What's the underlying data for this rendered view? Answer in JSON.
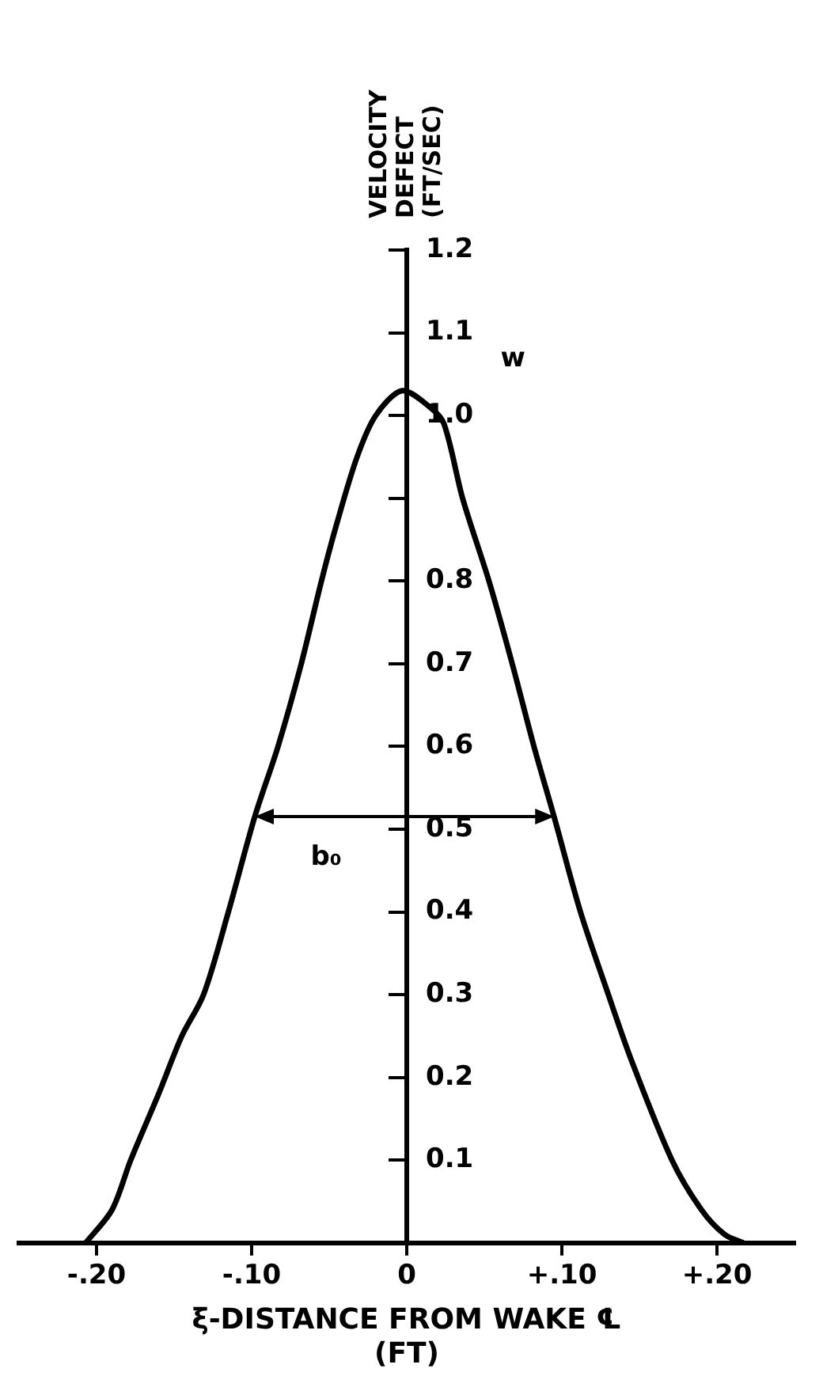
{
  "chart_data": {
    "type": "line",
    "xlabel": "ξ-DISTANCE FROM WAKE ℄ (FT)",
    "ylabel": "VELOCITY DEFECT (FT/SEC)",
    "series": [
      {
        "color": "#000000",
        "x": [
          -0.207,
          -0.19,
          -0.178,
          -0.16,
          -0.145,
          -0.131,
          -0.115,
          -0.098,
          -0.083,
          -0.068,
          -0.055,
          -0.045,
          -0.032,
          -0.02,
          -0.003,
          0.015,
          0.024,
          0.036,
          0.053,
          0.068,
          0.082,
          0.095,
          0.112,
          0.13,
          0.145,
          0.171,
          0.19,
          0.205,
          0.217
        ],
        "values": [
          0,
          0.04,
          0.1,
          0.18,
          0.25,
          0.3,
          0.4,
          0.515,
          0.6,
          0.7,
          0.8,
          0.87,
          0.95,
          1.0,
          1.03,
          1.01,
          0.99,
          0.9,
          0.8,
          0.7,
          0.6,
          0.515,
          0.4,
          0.3,
          0.22,
          0.1,
          0.04,
          0.01,
          0
        ]
      }
    ],
    "xlim": [
      -0.25,
      0.25
    ],
    "ylim": [
      0,
      1.2
    ],
    "xticks": [
      {
        "value": -0.2,
        "label": "-.20"
      },
      {
        "value": -0.1,
        "label": "-.10"
      },
      0,
      {
        "value": 0.1,
        "label": "+.10"
      },
      {
        "value": 0.2,
        "label": "+.20"
      }
    ],
    "yticks": [
      0.1,
      0.2,
      0.3,
      0.4,
      0.5,
      0.6,
      0.7,
      0.8,
      {
        "value": 0.9,
        "label": null
      },
      {
        "value": 1,
        "label": "1.0"
      },
      1.1,
      1.2
    ],
    "annotations": [
      "w",
      "b₀"
    ],
    "grid": false,
    "legend": false,
    "marker": "none",
    "line_style": "solid"
  }
}
